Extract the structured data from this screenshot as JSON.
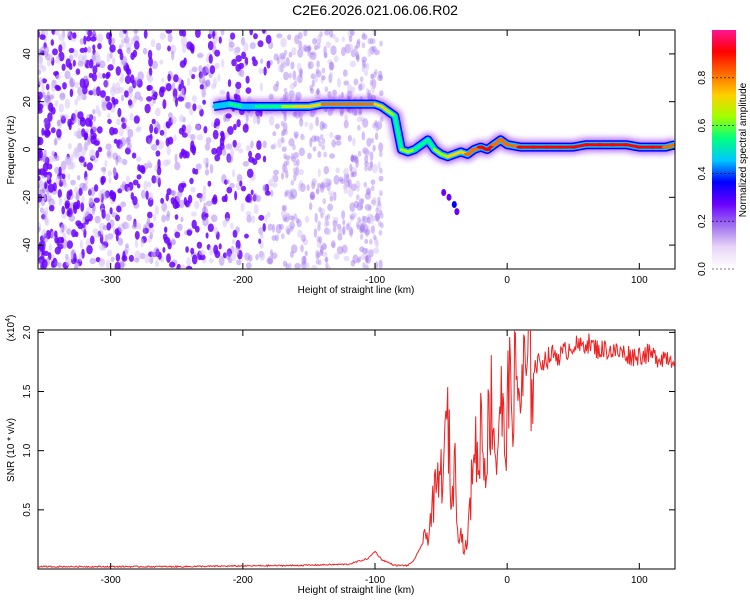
{
  "title": "C2E6.2026.021.06.06.R02",
  "colorbar": {
    "label": "Normalized spectral amplitude",
    "ticks": [
      "0.0",
      "0.2",
      "0.4",
      "0.6",
      "0.8"
    ],
    "tick_values": [
      0,
      0.2,
      0.4,
      0.6,
      0.8
    ],
    "range": [
      0,
      1
    ],
    "colors": [
      "#ffffff",
      "#e8d6f7",
      "#a070f0",
      "#6a00ff",
      "#0000ff",
      "#00c8ff",
      "#00ff80",
      "#a0ff00",
      "#ffd000",
      "#ff6a00",
      "#ff0000",
      "#ff1493"
    ]
  },
  "chart_data": [
    {
      "type": "heatmap",
      "title": "C2E6.2026.021.06.06.R02",
      "xlabel": "Height of straight line (km)",
      "ylabel": "Frequency (Hz)",
      "xlim": [
        -355,
        127
      ],
      "ylim": [
        -50,
        50
      ],
      "xticks": [
        -300,
        -200,
        -100,
        0,
        100
      ],
      "yticks": [
        -40,
        -20,
        0,
        20,
        40
      ],
      "ridge": {
        "x": [
          -222,
          -210,
          -200,
          -190,
          -180,
          -170,
          -160,
          -150,
          -140,
          -130,
          -120,
          -110,
          -100,
          -95,
          -90,
          -85,
          -80,
          -75,
          -70,
          -65,
          -60,
          -55,
          -50,
          -45,
          -40,
          -35,
          -30,
          -25,
          -20,
          -15,
          -10,
          -5,
          0,
          10,
          20,
          30,
          40,
          50,
          60,
          70,
          80,
          90,
          100,
          110,
          120,
          127
        ],
        "y": [
          18,
          19,
          18,
          18,
          18,
          18,
          18,
          18,
          19,
          19,
          19,
          19,
          19,
          18,
          16,
          14,
          0,
          -1,
          0,
          2,
          4,
          0,
          -2,
          -3,
          -2,
          -1,
          -2,
          0,
          1,
          0,
          2,
          4,
          2,
          1,
          1,
          1,
          1,
          1,
          2,
          2,
          2,
          2,
          1,
          1,
          1,
          2
        ],
        "amplitude": [
          0.45,
          0.5,
          0.45,
          0.5,
          0.55,
          0.65,
          0.7,
          0.75,
          0.78,
          0.8,
          0.85,
          0.8,
          0.75,
          0.7,
          0.65,
          0.55,
          0.6,
          0.6,
          0.55,
          0.5,
          0.55,
          0.6,
          0.65,
          0.7,
          0.7,
          0.75,
          0.8,
          0.85,
          0.9,
          0.9,
          0.85,
          0.8,
          0.85,
          0.9,
          0.9,
          0.9,
          0.88,
          0.9,
          0.9,
          0.9,
          0.92,
          0.95,
          0.9,
          0.9,
          0.85,
          0.8
        ]
      },
      "secondary_feature": {
        "x": [
          -48,
          -44,
          -40,
          -38
        ],
        "y": [
          -18,
          -20,
          -23,
          -26
        ]
      }
    },
    {
      "type": "line",
      "xlabel": "Height of straight line (km)",
      "ylabel": "SNR (10 * v/v)",
      "y_multiplier": "(x10",
      "y_multiplier_exp": "4",
      "y_multiplier_close": ")",
      "xlim": [
        -355,
        127
      ],
      "ylim": [
        0,
        2.02
      ],
      "xticks": [
        -300,
        -200,
        -100,
        0,
        100
      ],
      "yticks": [
        0.5,
        1.0,
        1.5,
        2.0
      ],
      "series": [
        {
          "color": "#ee2222",
          "x": [
            -355,
            -250,
            -160,
            -120,
            -105,
            -100,
            -95,
            -85,
            -75,
            -70,
            -65,
            -60,
            -55,
            -50,
            -47,
            -45,
            -42,
            -40,
            -37,
            -35,
            -32,
            -30,
            -27,
            -25,
            -22,
            -20,
            -17,
            -15,
            -12,
            -10,
            -8,
            -5,
            -2,
            0,
            5,
            10,
            15,
            20,
            25,
            30,
            35,
            40,
            45,
            50,
            55,
            60,
            65,
            70,
            75,
            80,
            85,
            90,
            95,
            100,
            105,
            110,
            115,
            120,
            125,
            127
          ],
          "y": [
            0.02,
            0.02,
            0.03,
            0.04,
            0.09,
            0.15,
            0.08,
            0.03,
            0.03,
            0.08,
            0.2,
            0.3,
            0.6,
            0.8,
            0.95,
            1.35,
            0.5,
            0.95,
            0.35,
            0.3,
            0.15,
            0.25,
            0.7,
            1.2,
            0.8,
            1.3,
            0.9,
            1.1,
            1.45,
            1.2,
            0.9,
            1.5,
            1.0,
            1.4,
            1.55,
            1.5,
            1.65,
            1.7,
            1.75,
            1.78,
            1.82,
            1.8,
            1.85,
            1.9,
            1.87,
            1.92,
            1.88,
            1.85,
            1.86,
            1.84,
            1.83,
            1.82,
            1.8,
            1.81,
            1.82,
            1.8,
            1.79,
            1.8,
            1.78,
            1.77
          ]
        }
      ]
    }
  ]
}
